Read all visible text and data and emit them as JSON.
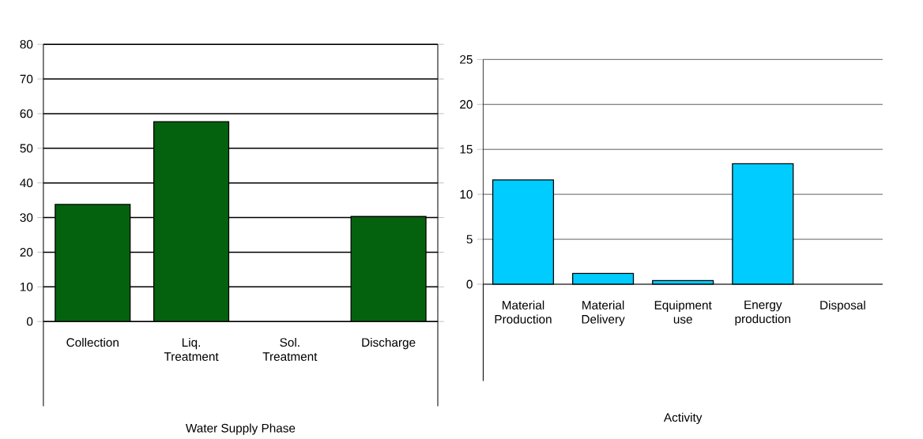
{
  "chart_data": [
    {
      "type": "bar",
      "xlabel": "Water Supply Phase",
      "categories": [
        "Collection",
        "Liq. Treatment",
        "Sol. Treatment",
        "Discharge"
      ],
      "values": [
        33.8,
        57.7,
        null,
        30.3
      ],
      "color": "#04620f",
      "ylim": [
        0,
        80
      ],
      "yticks": [
        0,
        10,
        20,
        30,
        40,
        50,
        60,
        70,
        80
      ],
      "grid": "y"
    },
    {
      "type": "bar",
      "xlabel": "Activity",
      "categories": [
        "Material Production",
        "Material Delivery",
        "Equipment use",
        "Energy production",
        "Disposal"
      ],
      "values": [
        11.6,
        1.2,
        0.4,
        13.4,
        null
      ],
      "color": "#00ccff",
      "ylim": [
        0,
        25
      ],
      "yticks": [
        0,
        5,
        10,
        15,
        20,
        25
      ],
      "grid": "y"
    }
  ]
}
